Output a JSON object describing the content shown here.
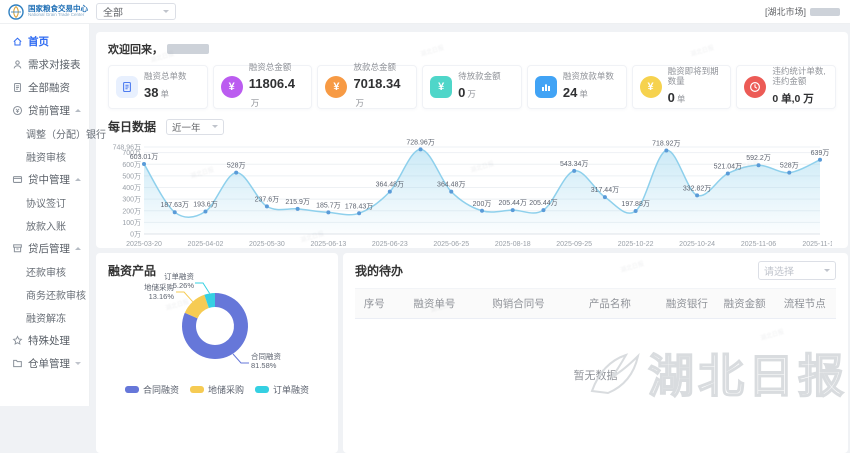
{
  "header": {
    "brand": {
      "title": "国家粮食交易中心",
      "subtitle": "National Grain Trade Center"
    },
    "market_select": "全部",
    "user_market": "[湖北市场]"
  },
  "sidebar": {
    "items": [
      {
        "id": "home",
        "label": "首页",
        "icon": "home",
        "type": "item",
        "active": true
      },
      {
        "id": "demand-docking",
        "label": "需求对接表",
        "icon": "user",
        "type": "item"
      },
      {
        "id": "all-financing",
        "label": "全部融资",
        "icon": "document",
        "type": "item"
      },
      {
        "id": "pre-loan",
        "label": "贷前管理",
        "icon": "coin",
        "type": "group",
        "chevron": "up"
      },
      {
        "id": "adjust-bank",
        "label": "调整（分配）银行",
        "type": "sub"
      },
      {
        "id": "financing-review",
        "label": "融资审核",
        "type": "sub"
      },
      {
        "id": "mid-loan",
        "label": "贷中管理",
        "icon": "card",
        "type": "group",
        "chevron": "up"
      },
      {
        "id": "agreement-sign",
        "label": "协议签订",
        "type": "sub"
      },
      {
        "id": "loan-entry",
        "label": "放款入账",
        "type": "sub"
      },
      {
        "id": "post-loan",
        "label": "贷后管理",
        "icon": "archive",
        "type": "group",
        "chevron": "up"
      },
      {
        "id": "repay-review",
        "label": "还款审核",
        "type": "sub"
      },
      {
        "id": "biz-repay-review",
        "label": "商务还款审核",
        "type": "sub"
      },
      {
        "id": "financing-unfreeze",
        "label": "融资解冻",
        "type": "sub"
      },
      {
        "id": "special-handling",
        "label": "特殊处理",
        "icon": "star",
        "type": "item"
      },
      {
        "id": "warehouse-receipt",
        "label": "仓单管理",
        "icon": "folder",
        "type": "group",
        "chevron": "down"
      }
    ]
  },
  "main": {
    "welcome": "欢迎回来，",
    "stats": [
      {
        "label": "融资总单数",
        "value": "38",
        "unit": "单"
      },
      {
        "label": "融资总金额",
        "value": "11806.4",
        "unit": "万"
      },
      {
        "label": "放款总金额",
        "value": "7018.34",
        "unit": "万"
      },
      {
        "label": "待放款金额",
        "value": "0",
        "unit": "万"
      },
      {
        "label": "融资放款单数",
        "value": "24",
        "unit": "单"
      },
      {
        "label": "融资即将到期数量",
        "value": "0",
        "unit": "单"
      },
      {
        "label": "违约统计单数,违约金额",
        "value": "0 单,0 万",
        "unit": ""
      }
    ],
    "daily": {
      "title": "每日数据",
      "range_select": "近一年"
    },
    "products": {
      "title": "融资产品"
    },
    "todo": {
      "title": "我的待办",
      "select_placeholder": "请选择",
      "columns": [
        "序号",
        "融资单号",
        "购销合同号",
        "产品名称",
        "融资银行",
        "融资金额",
        "流程节点"
      ],
      "empty": "暂无数据"
    },
    "watermark": "湖北日报"
  },
  "colors": {
    "accent": "#2f6bf2",
    "line": "#8ed0ec",
    "point": "#5a9bd8",
    "pie_blue": "#6677d9",
    "pie_yellow": "#f6cb53",
    "pie_cyan": "#35d0e2"
  },
  "chart_data": [
    {
      "type": "line",
      "title": "每日数据",
      "range": "近一年",
      "values": [
        603.01,
        187.63,
        193.6,
        528,
        237.6,
        215.9,
        185.7,
        178.43,
        364.48,
        728.96,
        364.48,
        200,
        205.44,
        205.44,
        543.34,
        317.44,
        197.88,
        718.92,
        332.82,
        521.04,
        592.2,
        528,
        639
      ],
      "point_labels": [
        "603.01万",
        "187.63万",
        "193.6万",
        "528万",
        "237.6万",
        "215.9万",
        "185.7万",
        "178.43万",
        "364.48万",
        "728.96万",
        "364.48万",
        "200万",
        "205.44万",
        "205.44万",
        "543.34万",
        "317.44万",
        "197.88万",
        "718.92万",
        "332.82万",
        "521.04万",
        "592.2万",
        "528万",
        "639万"
      ],
      "x_tick_labels": [
        "2025-03-20",
        "2025-04-02",
        "2025-05-30",
        "2025-06-13",
        "2025-06-23",
        "2025-06-25",
        "2025-08-18",
        "2025-09-25",
        "2025-10-22",
        "2025-10-24",
        "2025-11-06",
        "2025-11-18"
      ],
      "x_tick_every": 2,
      "y_ticks": [
        0,
        100,
        200,
        300,
        400,
        500,
        600,
        700,
        748.96
      ],
      "y_tick_labels": [
        "0万",
        "100万",
        "200万",
        "300万",
        "400万",
        "500万",
        "600万",
        "700万",
        "748.96万"
      ],
      "ylim": [
        0,
        748.96
      ],
      "unit": "万",
      "grid": true,
      "legend": false
    },
    {
      "type": "pie",
      "title": "融资产品",
      "donut": true,
      "slices": [
        {
          "name": "合同融资",
          "value": 81.58,
          "label": "81.58%",
          "color": "#6677d9"
        },
        {
          "name": "地储采购",
          "value": 13.16,
          "label": "13.16%",
          "color": "#f6cb53"
        },
        {
          "name": "订单融资",
          "value": 5.26,
          "label": "5.26%",
          "color": "#35d0e2"
        }
      ],
      "legend": [
        "合同融资",
        "地储采购",
        "订单融资"
      ],
      "legend_position": "bottom"
    }
  ]
}
